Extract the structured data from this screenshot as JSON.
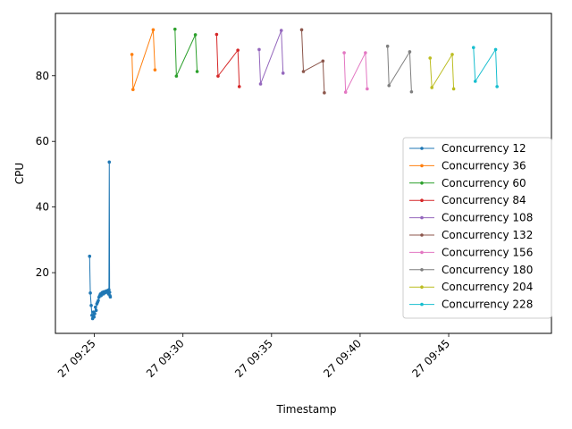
{
  "chart_data": {
    "type": "line",
    "xlabel": "Timestamp",
    "ylabel": "CPU",
    "x_unit": "minutes after 09:00 on day 27",
    "xlim": [
      22.8,
      50.8
    ],
    "ylim": [
      1.5,
      99.0
    ],
    "x_ticks": [
      {
        "value": 25,
        "label": "27 09:25"
      },
      {
        "value": 30,
        "label": "27 09:30"
      },
      {
        "value": 35,
        "label": "27 09:35"
      },
      {
        "value": 40,
        "label": "27 09:40"
      },
      {
        "value": 45,
        "label": "27 09:45"
      }
    ],
    "y_ticks": [
      {
        "value": 20,
        "label": "20"
      },
      {
        "value": 40,
        "label": "40"
      },
      {
        "value": 60,
        "label": "60"
      },
      {
        "value": 80,
        "label": "80"
      }
    ],
    "grid": false,
    "legend_position": "lower-right",
    "series": [
      {
        "name": "Concurrency 12",
        "color": "#1f77b4",
        "points": [
          [
            24.73,
            25.0
          ],
          [
            24.77,
            13.8
          ],
          [
            24.82,
            10.0
          ],
          [
            24.86,
            7.0
          ],
          [
            24.9,
            6.0
          ],
          [
            24.94,
            8.0
          ],
          [
            24.98,
            6.5
          ],
          [
            25.02,
            7.5
          ],
          [
            25.06,
            9.5
          ],
          [
            25.1,
            8.5
          ],
          [
            25.14,
            10.5
          ],
          [
            25.18,
            11.0
          ],
          [
            25.22,
            11.5
          ],
          [
            25.26,
            12.5
          ],
          [
            25.3,
            13.0
          ],
          [
            25.34,
            13.5
          ],
          [
            25.38,
            13.0
          ],
          [
            25.42,
            13.8
          ],
          [
            25.46,
            14.0
          ],
          [
            25.5,
            13.5
          ],
          [
            25.54,
            14.2
          ],
          [
            25.58,
            13.8
          ],
          [
            25.62,
            14.3
          ],
          [
            25.66,
            14.0
          ],
          [
            25.7,
            14.5
          ],
          [
            25.74,
            14.3
          ],
          [
            25.78,
            14.6
          ],
          [
            25.8,
            13.5
          ],
          [
            25.82,
            14.8
          ],
          [
            25.84,
            53.7
          ],
          [
            25.86,
            14.0
          ],
          [
            25.88,
            13.0
          ],
          [
            25.9,
            12.6
          ]
        ]
      },
      {
        "name": "Concurrency 36",
        "color": "#ff7f0e",
        "points": [
          [
            27.12,
            86.5
          ],
          [
            27.18,
            75.8
          ],
          [
            28.32,
            94.0
          ],
          [
            28.42,
            81.8
          ]
        ]
      },
      {
        "name": "Concurrency 60",
        "color": "#2ca02c",
        "points": [
          [
            29.55,
            94.2
          ],
          [
            29.63,
            79.9
          ],
          [
            30.7,
            92.5
          ],
          [
            30.8,
            81.3
          ]
        ]
      },
      {
        "name": "Concurrency 84",
        "color": "#d62728",
        "points": [
          [
            31.9,
            92.6
          ],
          [
            31.98,
            79.9
          ],
          [
            33.1,
            87.8
          ],
          [
            33.18,
            76.7
          ]
        ]
      },
      {
        "name": "Concurrency 108",
        "color": "#9467bd",
        "points": [
          [
            34.3,
            88.0
          ],
          [
            34.38,
            77.5
          ],
          [
            35.55,
            93.8
          ],
          [
            35.65,
            80.8
          ]
        ]
      },
      {
        "name": "Concurrency 132",
        "color": "#8c564b",
        "points": [
          [
            36.7,
            94.0
          ],
          [
            36.8,
            81.3
          ],
          [
            37.9,
            84.5
          ],
          [
            37.98,
            74.8
          ]
        ]
      },
      {
        "name": "Concurrency 156",
        "color": "#e377c2",
        "points": [
          [
            39.1,
            87.0
          ],
          [
            39.18,
            75.0
          ],
          [
            40.3,
            87.0
          ],
          [
            40.4,
            76.0
          ]
        ]
      },
      {
        "name": "Concurrency 180",
        "color": "#7f7f7f",
        "points": [
          [
            41.55,
            89.0
          ],
          [
            41.63,
            77.0
          ],
          [
            42.8,
            87.3
          ],
          [
            42.9,
            75.1
          ]
        ]
      },
      {
        "name": "Concurrency 204",
        "color": "#bcbd22",
        "points": [
          [
            43.95,
            85.4
          ],
          [
            44.05,
            76.4
          ],
          [
            45.2,
            86.5
          ],
          [
            45.28,
            76.0
          ]
        ]
      },
      {
        "name": "Concurrency 228",
        "color": "#17becf",
        "points": [
          [
            46.4,
            88.6
          ],
          [
            46.5,
            78.3
          ],
          [
            47.65,
            88.0
          ],
          [
            47.73,
            76.7
          ]
        ]
      }
    ]
  }
}
